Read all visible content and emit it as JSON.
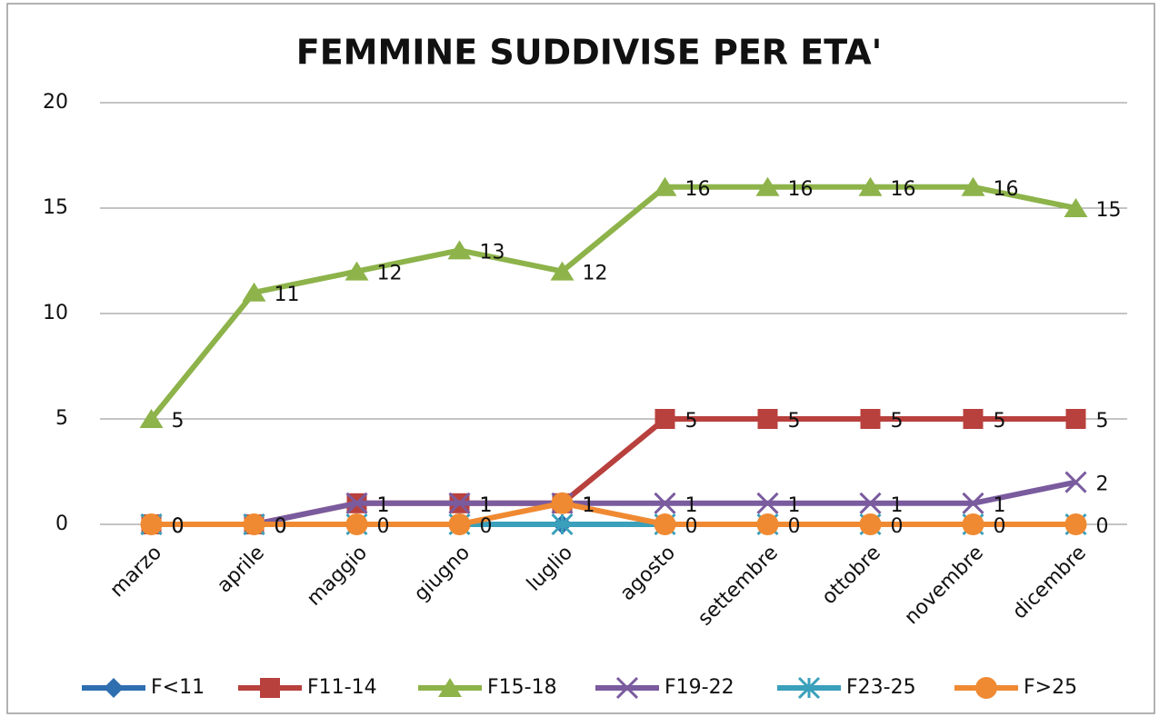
{
  "chart_data": {
    "type": "line",
    "title": "FEMMINE SUDDIVISE PER ETA'",
    "categories": [
      "marzo",
      "aprile",
      "maggio",
      "giugno",
      "luglio",
      "agosto",
      "settembre",
      "ottobre",
      "novembre",
      "dicembre"
    ],
    "ylim": [
      0,
      20
    ],
    "yticks": [
      0,
      5,
      10,
      15,
      20
    ],
    "grid": true,
    "legend": "bottom",
    "series": [
      {
        "name": "F<11",
        "color": "#2e6fb0",
        "marker": "diamond",
        "data_labels": false,
        "values": [
          0,
          0,
          0,
          0,
          0,
          0,
          0,
          0,
          0,
          0
        ]
      },
      {
        "name": "F11-14",
        "color": "#b8403d",
        "marker": "square",
        "data_labels": true,
        "values": [
          0,
          0,
          1,
          1,
          1,
          5,
          5,
          5,
          5,
          5
        ]
      },
      {
        "name": "F15-18",
        "color": "#8db34a",
        "marker": "triangle",
        "data_labels": true,
        "values": [
          5,
          11,
          12,
          13,
          12,
          16,
          16,
          16,
          16,
          15
        ]
      },
      {
        "name": "F19-22",
        "color": "#7a5b9e",
        "marker": "x",
        "data_labels": true,
        "values": [
          0,
          0,
          1,
          1,
          1,
          1,
          1,
          1,
          1,
          2
        ]
      },
      {
        "name": "F23-25",
        "color": "#3aa0bb",
        "marker": "star",
        "data_labels": false,
        "values": [
          0,
          0,
          0,
          0,
          0,
          0,
          0,
          0,
          0,
          0
        ]
      },
      {
        "name": "F>25",
        "color": "#f08a32",
        "marker": "circle",
        "data_labels": true,
        "values": [
          0,
          0,
          0,
          0,
          1,
          0,
          0,
          0,
          0,
          0
        ]
      }
    ]
  }
}
